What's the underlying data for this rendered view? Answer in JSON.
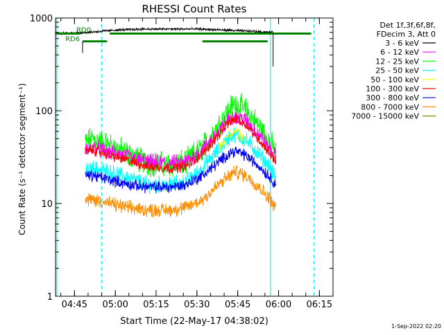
{
  "chart_data": {
    "type": "line",
    "title": "RHESSI Count Rates",
    "xlabel": "Start Time (22-May-17 04:38:02)",
    "ylabel": "Count Rate (s⁻¹ detector segment⁻¹)",
    "y_scale": "log",
    "ylim": [
      1,
      1000
    ],
    "xlim": [
      "04:38:02",
      "06:20:00"
    ],
    "x_ticks": [
      "04:45",
      "05:00",
      "05:15",
      "05:30",
      "05:45",
      "06:00",
      "06:15"
    ],
    "y_ticks": [
      "1",
      "10",
      "100",
      "1000"
    ],
    "legend_header": [
      "Det 1f,3f,6f,8f,",
      "FDecim 3, Att 0"
    ],
    "legend_position": "right",
    "timestamp": "1-Sep-2022 02:20",
    "series": [
      {
        "name": "3 - 6 keV",
        "color": "#000000",
        "x": [
          "04:40",
          "04:50",
          "05:00",
          "05:10",
          "05:20",
          "05:30",
          "05:40",
          "05:50",
          "05:58"
        ],
        "values": [
          680,
          700,
          740,
          760,
          760,
          760,
          740,
          720,
          700
        ]
      },
      {
        "name": "6 - 12 keV",
        "color": "#ff00ff",
        "x": [
          "04:49",
          "04:52",
          "04:58",
          "05:05",
          "05:12",
          "05:20",
          "05:26",
          "05:32",
          "05:38",
          "05:42",
          "05:44",
          "05:48",
          "05:53",
          "05:57",
          "05:59"
        ],
        "values": [
          38,
          40,
          36,
          32,
          28,
          27,
          28,
          38,
          60,
          82,
          90,
          78,
          55,
          38,
          32
        ]
      },
      {
        "name": "12 - 25 keV",
        "color": "#00ff00",
        "x": [
          "04:49",
          "04:52",
          "04:58",
          "05:05",
          "05:12",
          "05:20",
          "05:26",
          "05:32",
          "05:38",
          "05:42",
          "05:44",
          "05:48",
          "05:53",
          "05:57",
          "05:59"
        ],
        "values": [
          46,
          50,
          42,
          34,
          27,
          26,
          28,
          40,
          70,
          105,
          120,
          100,
          68,
          45,
          35
        ]
      },
      {
        "name": "25 - 50 keV",
        "color": "#00ffff",
        "x": [
          "04:49",
          "04:52",
          "04:58",
          "05:05",
          "05:12",
          "05:20",
          "05:26",
          "05:32",
          "05:38",
          "05:42",
          "05:44",
          "05:48",
          "05:53",
          "05:57",
          "05:59"
        ],
        "values": [
          22,
          24,
          22,
          19,
          16,
          16,
          17,
          24,
          38,
          52,
          56,
          48,
          34,
          24,
          19
        ]
      },
      {
        "name": "50 - 100 keV",
        "color": "#ffff00",
        "x": [
          "05:38",
          "05:42",
          "05:44",
          "05:48"
        ],
        "values": [
          40,
          55,
          60,
          50
        ]
      },
      {
        "name": "100 - 300 keV",
        "color": "#ff0000",
        "x": [
          "04:49",
          "04:52",
          "04:58",
          "05:05",
          "05:12",
          "05:20",
          "05:26",
          "05:32",
          "05:38",
          "05:42",
          "05:44",
          "05:48",
          "05:53",
          "05:57",
          "05:59"
        ],
        "values": [
          36,
          38,
          33,
          29,
          25,
          24,
          25,
          34,
          55,
          76,
          82,
          72,
          48,
          34,
          29
        ]
      },
      {
        "name": "300 - 800 keV",
        "color": "#0000ff",
        "x": [
          "04:49",
          "04:52",
          "04:58",
          "05:05",
          "05:12",
          "05:20",
          "05:26",
          "05:32",
          "05:38",
          "05:42",
          "05:44",
          "05:48",
          "05:53",
          "05:57",
          "05:59"
        ],
        "values": [
          20,
          20,
          18,
          16,
          15,
          15,
          16,
          20,
          28,
          35,
          37,
          33,
          25,
          19,
          16
        ]
      },
      {
        "name": "800 - 7000 keV",
        "color": "#ff8c00",
        "x": [
          "04:49",
          "04:52",
          "04:58",
          "05:05",
          "05:12",
          "05:20",
          "05:26",
          "05:32",
          "05:38",
          "05:42",
          "05:44",
          "05:48",
          "05:53",
          "05:57",
          "05:59"
        ],
        "values": [
          11,
          11,
          10,
          9,
          8.5,
          8.5,
          9,
          11,
          16,
          20,
          22,
          20,
          15,
          11,
          9
        ]
      },
      {
        "name": "7000 - 15000 keV",
        "color": "#808000",
        "x": [],
        "values": []
      }
    ],
    "annotations": [
      {
        "label": "RD0",
        "bars": [
          [
            "04:38",
            "04:47"
          ],
          [
            "04:58",
            "06:12"
          ]
        ],
        "y": 680,
        "color": "#008000"
      },
      {
        "label": "RD6",
        "bars": [
          [
            "04:48",
            "04:57"
          ],
          [
            "05:32",
            "05:56"
          ]
        ],
        "y": 560,
        "color": "#008000"
      }
    ],
    "vlines": [
      {
        "x": "04:38:30",
        "style": "solid",
        "color": "#00ffff"
      },
      {
        "x": "04:55",
        "style": "dashed",
        "color": "#00ffff"
      },
      {
        "x": "05:57",
        "style": "solid",
        "color": "#00ffff"
      },
      {
        "x": "06:13",
        "style": "dashed",
        "color": "#00ffff"
      }
    ]
  }
}
